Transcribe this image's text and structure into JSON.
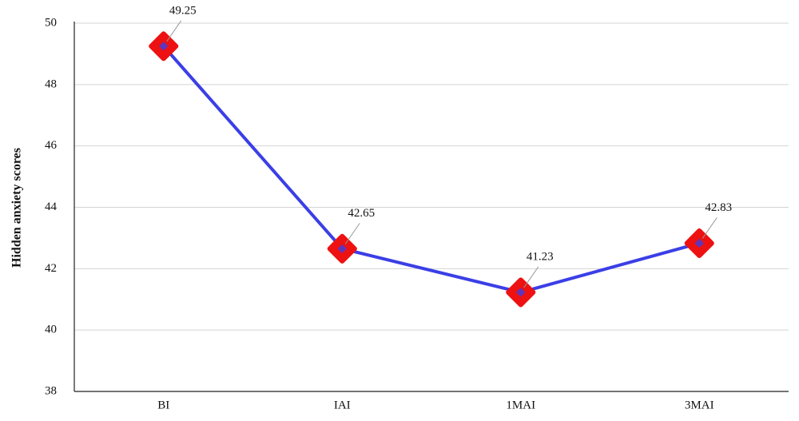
{
  "chart_data": {
    "type": "line",
    "y_label": "Hidden anxiety scores",
    "categories": [
      "BI",
      "IAI",
      "1MAI",
      "3MAI"
    ],
    "values": [
      49.25,
      42.65,
      41.23,
      42.83
    ],
    "color": "#3b3fe6",
    "marker_color": "#ee1111",
    "ylim": [
      38,
      50
    ],
    "yticks": [
      38,
      40,
      42,
      44,
      46,
      48,
      50
    ],
    "grid": true
  }
}
